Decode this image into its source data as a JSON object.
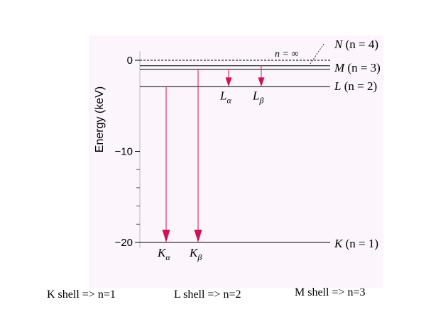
{
  "diagram": {
    "y_axis": {
      "label": "Energy (keV)",
      "range": [
        -21,
        1
      ],
      "ticks": [
        {
          "value": 0,
          "label": "0"
        },
        {
          "value": -10,
          "label": "−10"
        },
        {
          "value": -20,
          "label": "−20"
        }
      ],
      "minor_ticks": [
        -12,
        -14,
        -16,
        -18
      ]
    },
    "levels": [
      {
        "id": "n-infinity",
        "energy": 0,
        "style": "dashed",
        "inline_label": "n = ∞"
      },
      {
        "id": "N",
        "energy": -0.6,
        "style": "solid",
        "shell": "N",
        "n_label": "(n = 4)"
      },
      {
        "id": "M",
        "energy": -1.0,
        "style": "solid",
        "shell": "M",
        "n_label": "(n = 3)"
      },
      {
        "id": "L",
        "energy": -2.9,
        "style": "solid",
        "shell": "L",
        "n_label": "(n = 2)"
      },
      {
        "id": "K",
        "energy": -20.0,
        "style": "solid",
        "shell": "K",
        "n_label": "(n = 1)"
      }
    ],
    "transitions": [
      {
        "id": "K-alpha",
        "symbol": "K",
        "sub": "α",
        "from": -2.9,
        "to": -20.0
      },
      {
        "id": "K-beta",
        "symbol": "K",
        "sub": "β",
        "from": -1.0,
        "to": -20.0
      },
      {
        "id": "L-alpha",
        "symbol": "L",
        "sub": "α",
        "from": -1.0,
        "to": -2.9
      },
      {
        "id": "L-beta",
        "symbol": "L",
        "sub": "β",
        "from": -0.6,
        "to": -2.9
      }
    ],
    "colors": {
      "arrow": "#d0105a",
      "line": "#000000",
      "background": "#fcf5fc"
    }
  },
  "captions": {
    "k_shell": "K shell  => n=1",
    "l_shell": "L shell => n=2",
    "m_shell": "M shell => n=3"
  }
}
